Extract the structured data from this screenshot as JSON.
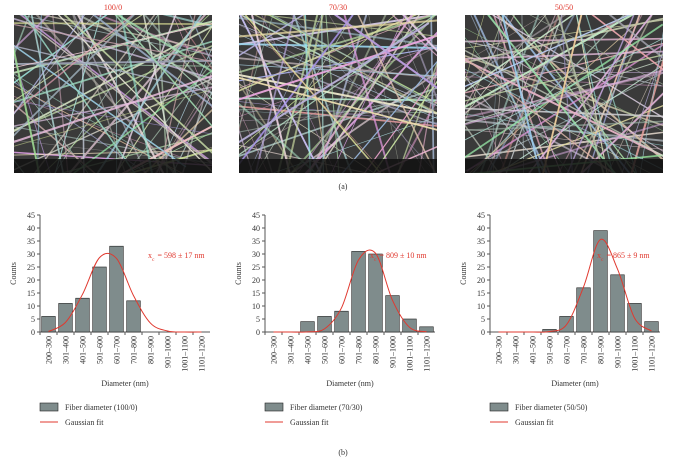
{
  "figure": {
    "panel_a": {
      "label": "(a)",
      "images": [
        {
          "title": "100/0"
        },
        {
          "title": "70/30"
        },
        {
          "title": "50/50"
        }
      ]
    },
    "panel_b": {
      "label": "(b)"
    }
  },
  "chart_data": [
    {
      "type": "bar",
      "ylabel": "Counts",
      "xlabel": "Diameter (nm)",
      "categories": [
        "200–300",
        "301–400",
        "401–500",
        "501–600",
        "601–700",
        "701–800",
        "801–900",
        "901–1000",
        "1001–1100",
        "1101–1200"
      ],
      "series": [
        {
          "name": "Fiber diameter (100/0)",
          "color": "#7f8c8c",
          "values": [
            6,
            11,
            13,
            25,
            33,
            12,
            0,
            0,
            0,
            0
          ]
        },
        {
          "name": "Gaussian fit",
          "type": "line",
          "color": "#e0392f",
          "values": [
            0.2,
            3.7,
            14.5,
            28.6,
            28.3,
            14,
            3.4,
            0.4,
            0,
            0
          ]
        }
      ],
      "ylim": [
        0,
        45
      ],
      "yticks": [
        0,
        5,
        10,
        15,
        20,
        25,
        30,
        35,
        40,
        45
      ],
      "annotation": {
        "symbol": "x",
        "subscript": "c",
        "text": "= 598 ± 17 nm",
        "color": "#e0392f"
      }
    },
    {
      "type": "bar",
      "ylabel": "Counts",
      "xlabel": "Diameter (nm)",
      "categories": [
        "200–300",
        "301–400",
        "401–500",
        "501–600",
        "601–700",
        "701–800",
        "801–900",
        "901–1000",
        "1001–1100",
        "1101–1200"
      ],
      "series": [
        {
          "name": "Fiber diameter (70/30)",
          "color": "#7f8c8c",
          "values": [
            0,
            0,
            4,
            6,
            8,
            31,
            30,
            14,
            5,
            2
          ]
        },
        {
          "name": "Gaussian fit",
          "type": "line",
          "color": "#e0392f",
          "values": [
            0,
            0,
            0.05,
            1.2,
            9.3,
            27.7,
            30.3,
            12.2,
            1.8,
            0.1
          ]
        }
      ],
      "ylim": [
        0,
        45
      ],
      "yticks": [
        0,
        5,
        10,
        15,
        20,
        25,
        30,
        35,
        40,
        45
      ],
      "annotation": {
        "symbol": "x",
        "subscript": "c",
        "text": "= 809 ± 10 nm",
        "color": "#e0392f"
      }
    },
    {
      "type": "bar",
      "ylabel": "Counts",
      "xlabel": "Diameter (nm)",
      "categories": [
        "200–300",
        "301–400",
        "401–500",
        "501–600",
        "601–700",
        "701–800",
        "801–900",
        "901–1000",
        "1001–1100",
        "1101–1200"
      ],
      "series": [
        {
          "name": "Fiber diameter (50/50)",
          "color": "#7f8c8c",
          "values": [
            0,
            0,
            0,
            1,
            6,
            17,
            39,
            22,
            11,
            4
          ]
        },
        {
          "name": "Gaussian fit",
          "type": "line",
          "color": "#e0392f",
          "values": [
            0,
            0,
            0,
            0.2,
            2.8,
            17.3,
            35.6,
            24.2,
            5.4,
            0.4
          ]
        }
      ],
      "ylim": [
        0,
        45
      ],
      "yticks": [
        0,
        5,
        10,
        15,
        20,
        25,
        30,
        35,
        40,
        45
      ],
      "annotation": {
        "symbol": "x",
        "subscript": "c",
        "text": "= 865 ± 9 nm",
        "color": "#e0392f"
      }
    }
  ]
}
